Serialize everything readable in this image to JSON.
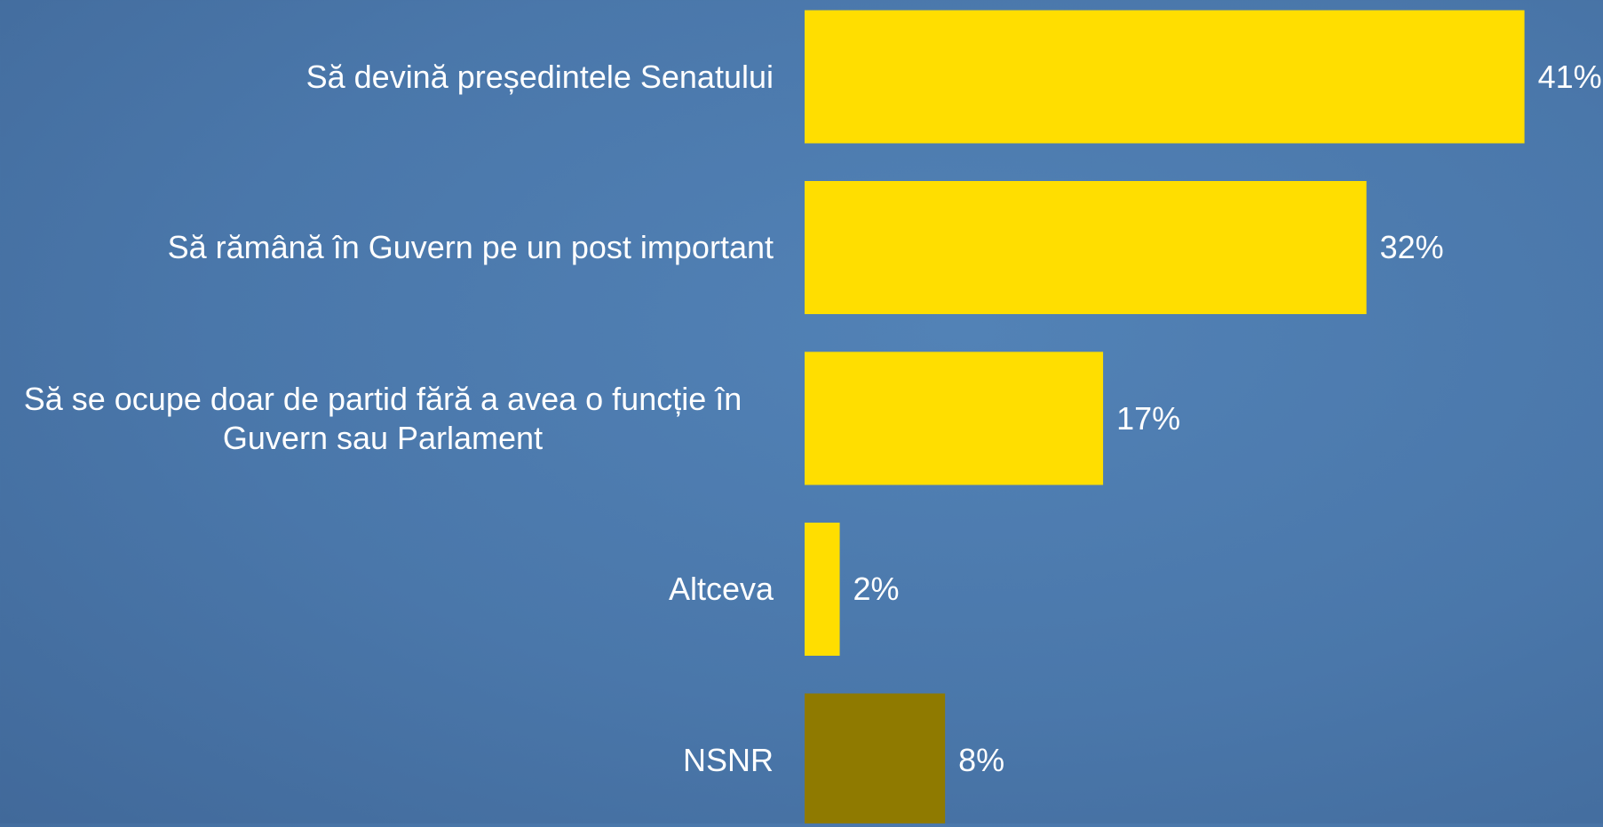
{
  "chart_data": {
    "type": "bar",
    "orientation": "horizontal",
    "categories": [
      "Să devină președintele Senatului",
      "Să rămână în Guvern pe un post important",
      "Să se ocupe doar de partid fără a avea o funcție în Guvern sau Parlament",
      "Altceva",
      "NSNR"
    ],
    "values": [
      41,
      32,
      17,
      2,
      8
    ],
    "value_labels": [
      "41%",
      "32%",
      "17%",
      "2%",
      "8%"
    ],
    "colors": [
      "#ffde00",
      "#ffde00",
      "#ffde00",
      "#ffde00",
      "#8f7a00"
    ]
  }
}
